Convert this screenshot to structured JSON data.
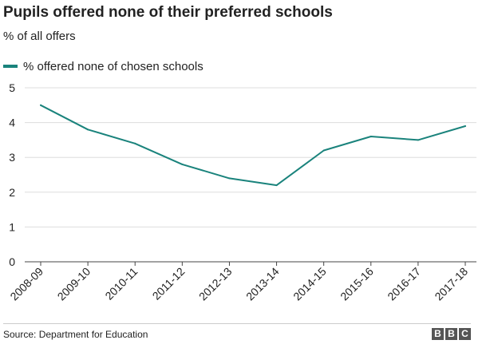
{
  "header": {
    "title": "Pupils offered none of their preferred schools",
    "subtitle": "% of all offers"
  },
  "footer": {
    "source": "Source: Department for Education",
    "logo_letters": [
      "B",
      "B",
      "C"
    ]
  },
  "colors": {
    "series": "#1a837c",
    "axis": "#444444",
    "grid": "#dddddd",
    "text": "#222222",
    "logo": "#555555"
  },
  "chart_data": {
    "type": "line",
    "title": "Pupils offered none of their preferred schools",
    "subtitle": "% of all offers",
    "xlabel": "",
    "ylabel": "",
    "categories": [
      "2008-09",
      "2009-10",
      "2010-11",
      "2011-12",
      "2012-13",
      "2013-14",
      "2014-15",
      "2015-16",
      "2016-17",
      "2017-18"
    ],
    "series": [
      {
        "name": "% offered none of chosen schools",
        "values": [
          4.5,
          3.8,
          3.4,
          2.8,
          2.4,
          2.2,
          3.2,
          3.6,
          3.5,
          3.9
        ]
      }
    ],
    "ylim": [
      0,
      5
    ],
    "yticks": [
      0,
      1,
      2,
      3,
      4,
      5
    ],
    "grid": true,
    "legend": "top-left"
  }
}
